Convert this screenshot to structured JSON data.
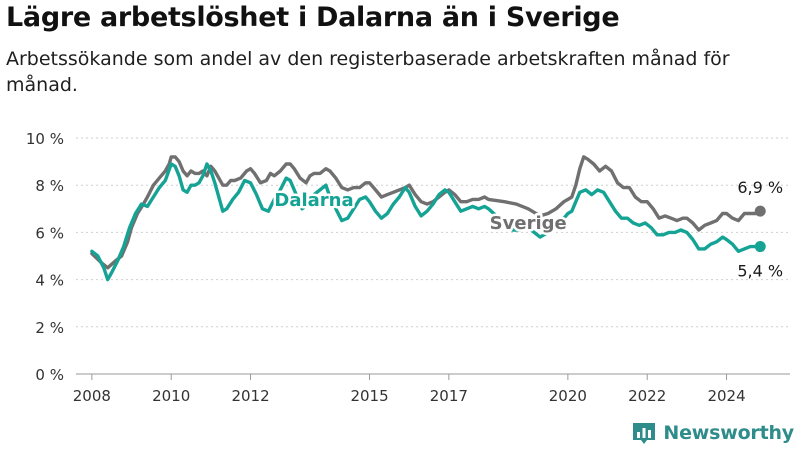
{
  "title": "Lägre arbetslöshet i Dalarna än i Sverige",
  "subtitle": "Arbetssökande som andel av den registerbaserade arbetskraften månad för månad.",
  "brand": {
    "name": "Newsworthy",
    "color": "#2e8c8a",
    "icon": "bar-chart-logo-icon"
  },
  "chart_data": {
    "type": "line",
    "title": "Lägre arbetslöshet i Dalarna än i Sverige",
    "subtitle": "Arbetssökande som andel av den registerbaserade arbetskraften månad för månad.",
    "xlabel": "",
    "ylabel": "",
    "ylim": [
      0,
      10
    ],
    "xlim": [
      2007.6,
      2025.6
    ],
    "grid": true,
    "legend": "direct-labels",
    "y_ticks": [
      0,
      2,
      4,
      6,
      8,
      10
    ],
    "y_tick_labels": [
      "0 %",
      "2 %",
      "4 %",
      "6 %",
      "8 %",
      "10 %"
    ],
    "x_ticks": [
      2008,
      2010,
      2012,
      2015,
      2017,
      2020,
      2022,
      2024
    ],
    "x_tick_labels": [
      "2008",
      "2010",
      "2012",
      "2015",
      "2017",
      "2020",
      "2022",
      "2024"
    ],
    "series": [
      {
        "name": "Sverige",
        "color": "#707070",
        "end_label": "6,9 %",
        "points": [
          [
            2008.0,
            5.1
          ],
          [
            2008.25,
            4.7
          ],
          [
            2008.4,
            4.5
          ],
          [
            2008.6,
            4.8
          ],
          [
            2008.75,
            5.0
          ],
          [
            2008.9,
            5.6
          ],
          [
            2009.0,
            6.2
          ],
          [
            2009.15,
            6.8
          ],
          [
            2009.3,
            7.2
          ],
          [
            2009.4,
            7.5
          ],
          [
            2009.55,
            8.0
          ],
          [
            2009.7,
            8.3
          ],
          [
            2009.85,
            8.6
          ],
          [
            2009.95,
            8.9
          ],
          [
            2010.0,
            9.2
          ],
          [
            2010.1,
            9.2
          ],
          [
            2010.2,
            9.0
          ],
          [
            2010.3,
            8.6
          ],
          [
            2010.4,
            8.4
          ],
          [
            2010.5,
            8.6
          ],
          [
            2010.6,
            8.5
          ],
          [
            2010.7,
            8.5
          ],
          [
            2010.8,
            8.6
          ],
          [
            2010.9,
            8.4
          ],
          [
            2011.0,
            8.8
          ],
          [
            2011.1,
            8.6
          ],
          [
            2011.2,
            8.3
          ],
          [
            2011.3,
            8.0
          ],
          [
            2011.4,
            8.0
          ],
          [
            2011.5,
            8.2
          ],
          [
            2011.6,
            8.2
          ],
          [
            2011.75,
            8.3
          ],
          [
            2011.9,
            8.6
          ],
          [
            2012.0,
            8.7
          ],
          [
            2012.1,
            8.5
          ],
          [
            2012.25,
            8.1
          ],
          [
            2012.4,
            8.2
          ],
          [
            2012.5,
            8.5
          ],
          [
            2012.6,
            8.4
          ],
          [
            2012.75,
            8.6
          ],
          [
            2012.9,
            8.9
          ],
          [
            2013.0,
            8.9
          ],
          [
            2013.1,
            8.7
          ],
          [
            2013.25,
            8.3
          ],
          [
            2013.4,
            8.1
          ],
          [
            2013.5,
            8.4
          ],
          [
            2013.6,
            8.5
          ],
          [
            2013.75,
            8.5
          ],
          [
            2013.9,
            8.7
          ],
          [
            2014.0,
            8.6
          ],
          [
            2014.15,
            8.3
          ],
          [
            2014.3,
            7.9
          ],
          [
            2014.45,
            7.8
          ],
          [
            2014.6,
            7.9
          ],
          [
            2014.75,
            7.9
          ],
          [
            2014.9,
            8.1
          ],
          [
            2015.0,
            8.1
          ],
          [
            2015.15,
            7.8
          ],
          [
            2015.3,
            7.5
          ],
          [
            2015.45,
            7.6
          ],
          [
            2015.6,
            7.7
          ],
          [
            2015.75,
            7.8
          ],
          [
            2015.9,
            7.9
          ],
          [
            2016.0,
            8.0
          ],
          [
            2016.15,
            7.6
          ],
          [
            2016.3,
            7.3
          ],
          [
            2016.45,
            7.2
          ],
          [
            2016.6,
            7.3
          ],
          [
            2016.75,
            7.5
          ],
          [
            2016.9,
            7.7
          ],
          [
            2017.0,
            7.8
          ],
          [
            2017.15,
            7.6
          ],
          [
            2017.3,
            7.3
          ],
          [
            2017.45,
            7.3
          ],
          [
            2017.6,
            7.4
          ],
          [
            2017.75,
            7.4
          ],
          [
            2017.9,
            7.5
          ],
          [
            2018.0,
            7.4
          ],
          [
            2018.4,
            7.3
          ],
          [
            2018.7,
            7.2
          ],
          [
            2019.0,
            7.0
          ],
          [
            2019.3,
            6.7
          ],
          [
            2019.5,
            6.8
          ],
          [
            2019.7,
            7.0
          ],
          [
            2019.9,
            7.3
          ],
          [
            2020.0,
            7.4
          ],
          [
            2020.1,
            7.5
          ],
          [
            2020.2,
            8.0
          ],
          [
            2020.3,
            8.7
          ],
          [
            2020.4,
            9.2
          ],
          [
            2020.5,
            9.1
          ],
          [
            2020.65,
            8.9
          ],
          [
            2020.8,
            8.6
          ],
          [
            2020.95,
            8.8
          ],
          [
            2021.1,
            8.6
          ],
          [
            2021.25,
            8.1
          ],
          [
            2021.4,
            7.9
          ],
          [
            2021.55,
            7.9
          ],
          [
            2021.7,
            7.5
          ],
          [
            2021.85,
            7.3
          ],
          [
            2022.0,
            7.3
          ],
          [
            2022.15,
            7.0
          ],
          [
            2022.3,
            6.6
          ],
          [
            2022.45,
            6.7
          ],
          [
            2022.6,
            6.6
          ],
          [
            2022.75,
            6.5
          ],
          [
            2022.9,
            6.6
          ],
          [
            2023.0,
            6.6
          ],
          [
            2023.15,
            6.4
          ],
          [
            2023.3,
            6.1
          ],
          [
            2023.45,
            6.3
          ],
          [
            2023.6,
            6.4
          ],
          [
            2023.75,
            6.5
          ],
          [
            2023.9,
            6.8
          ],
          [
            2024.0,
            6.8
          ],
          [
            2024.15,
            6.6
          ],
          [
            2024.3,
            6.5
          ],
          [
            2024.45,
            6.8
          ],
          [
            2024.6,
            6.8
          ],
          [
            2024.75,
            6.8
          ],
          [
            2024.85,
            6.9
          ]
        ]
      },
      {
        "name": "Dalarna",
        "color": "#14a394",
        "end_label": "5,4 %",
        "points": [
          [
            2008.0,
            5.2
          ],
          [
            2008.15,
            5.0
          ],
          [
            2008.3,
            4.5
          ],
          [
            2008.4,
            4.0
          ],
          [
            2008.5,
            4.3
          ],
          [
            2008.65,
            4.8
          ],
          [
            2008.8,
            5.4
          ],
          [
            2008.95,
            6.2
          ],
          [
            2009.1,
            6.8
          ],
          [
            2009.25,
            7.2
          ],
          [
            2009.4,
            7.1
          ],
          [
            2009.55,
            7.5
          ],
          [
            2009.7,
            7.9
          ],
          [
            2009.85,
            8.2
          ],
          [
            2010.0,
            8.9
          ],
          [
            2010.1,
            8.8
          ],
          [
            2010.2,
            8.4
          ],
          [
            2010.3,
            7.8
          ],
          [
            2010.4,
            7.7
          ],
          [
            2010.5,
            8.0
          ],
          [
            2010.6,
            8.0
          ],
          [
            2010.7,
            8.1
          ],
          [
            2010.8,
            8.4
          ],
          [
            2010.9,
            8.9
          ],
          [
            2011.0,
            8.6
          ],
          [
            2011.1,
            8.1
          ],
          [
            2011.2,
            7.5
          ],
          [
            2011.3,
            6.9
          ],
          [
            2011.4,
            7.0
          ],
          [
            2011.55,
            7.4
          ],
          [
            2011.7,
            7.7
          ],
          [
            2011.85,
            8.2
          ],
          [
            2012.0,
            8.1
          ],
          [
            2012.15,
            7.6
          ],
          [
            2012.3,
            7.0
          ],
          [
            2012.45,
            6.9
          ],
          [
            2012.6,
            7.4
          ],
          [
            2012.75,
            7.8
          ],
          [
            2012.9,
            8.3
          ],
          [
            2013.0,
            8.2
          ],
          [
            2013.15,
            7.6
          ],
          [
            2013.3,
            7.0
          ],
          [
            2013.45,
            7.2
          ],
          [
            2013.6,
            7.6
          ],
          [
            2013.75,
            7.8
          ],
          [
            2013.9,
            8.0
          ],
          [
            2014.0,
            7.5
          ],
          [
            2014.15,
            7.0
          ],
          [
            2014.3,
            6.5
          ],
          [
            2014.45,
            6.6
          ],
          [
            2014.6,
            7.0
          ],
          [
            2014.75,
            7.4
          ],
          [
            2014.9,
            7.5
          ],
          [
            2015.0,
            7.3
          ],
          [
            2015.15,
            6.9
          ],
          [
            2015.3,
            6.6
          ],
          [
            2015.45,
            6.8
          ],
          [
            2015.6,
            7.2
          ],
          [
            2015.75,
            7.5
          ],
          [
            2015.9,
            7.9
          ],
          [
            2016.0,
            7.7
          ],
          [
            2016.15,
            7.1
          ],
          [
            2016.3,
            6.7
          ],
          [
            2016.45,
            6.9
          ],
          [
            2016.6,
            7.2
          ],
          [
            2016.75,
            7.6
          ],
          [
            2016.9,
            7.8
          ],
          [
            2017.0,
            7.7
          ],
          [
            2017.15,
            7.3
          ],
          [
            2017.3,
            6.9
          ],
          [
            2017.45,
            7.0
          ],
          [
            2017.6,
            7.1
          ],
          [
            2017.75,
            7.0
          ],
          [
            2017.9,
            7.1
          ],
          [
            2018.0,
            7.0
          ],
          [
            2018.4,
            6.4
          ],
          [
            2018.6,
            6.1
          ],
          [
            2018.8,
            6.1
          ],
          [
            2019.0,
            6.2
          ],
          [
            2019.3,
            5.8
          ],
          [
            2019.5,
            6.0
          ],
          [
            2019.7,
            6.3
          ],
          [
            2019.9,
            6.6
          ],
          [
            2020.0,
            6.8
          ],
          [
            2020.1,
            6.9
          ],
          [
            2020.2,
            7.3
          ],
          [
            2020.3,
            7.7
          ],
          [
            2020.45,
            7.8
          ],
          [
            2020.6,
            7.6
          ],
          [
            2020.75,
            7.8
          ],
          [
            2020.9,
            7.7
          ],
          [
            2021.05,
            7.3
          ],
          [
            2021.2,
            6.9
          ],
          [
            2021.35,
            6.6
          ],
          [
            2021.5,
            6.6
          ],
          [
            2021.65,
            6.4
          ],
          [
            2021.8,
            6.3
          ],
          [
            2021.95,
            6.4
          ],
          [
            2022.1,
            6.2
          ],
          [
            2022.25,
            5.9
          ],
          [
            2022.4,
            5.9
          ],
          [
            2022.55,
            6.0
          ],
          [
            2022.7,
            6.0
          ],
          [
            2022.85,
            6.1
          ],
          [
            2023.0,
            6.0
          ],
          [
            2023.15,
            5.7
          ],
          [
            2023.3,
            5.3
          ],
          [
            2023.45,
            5.3
          ],
          [
            2023.6,
            5.5
          ],
          [
            2023.75,
            5.6
          ],
          [
            2023.9,
            5.8
          ],
          [
            2024.0,
            5.7
          ],
          [
            2024.15,
            5.5
          ],
          [
            2024.3,
            5.2
          ],
          [
            2024.45,
            5.3
          ],
          [
            2024.6,
            5.4
          ],
          [
            2024.75,
            5.4
          ],
          [
            2024.85,
            5.4
          ]
        ]
      }
    ]
  }
}
